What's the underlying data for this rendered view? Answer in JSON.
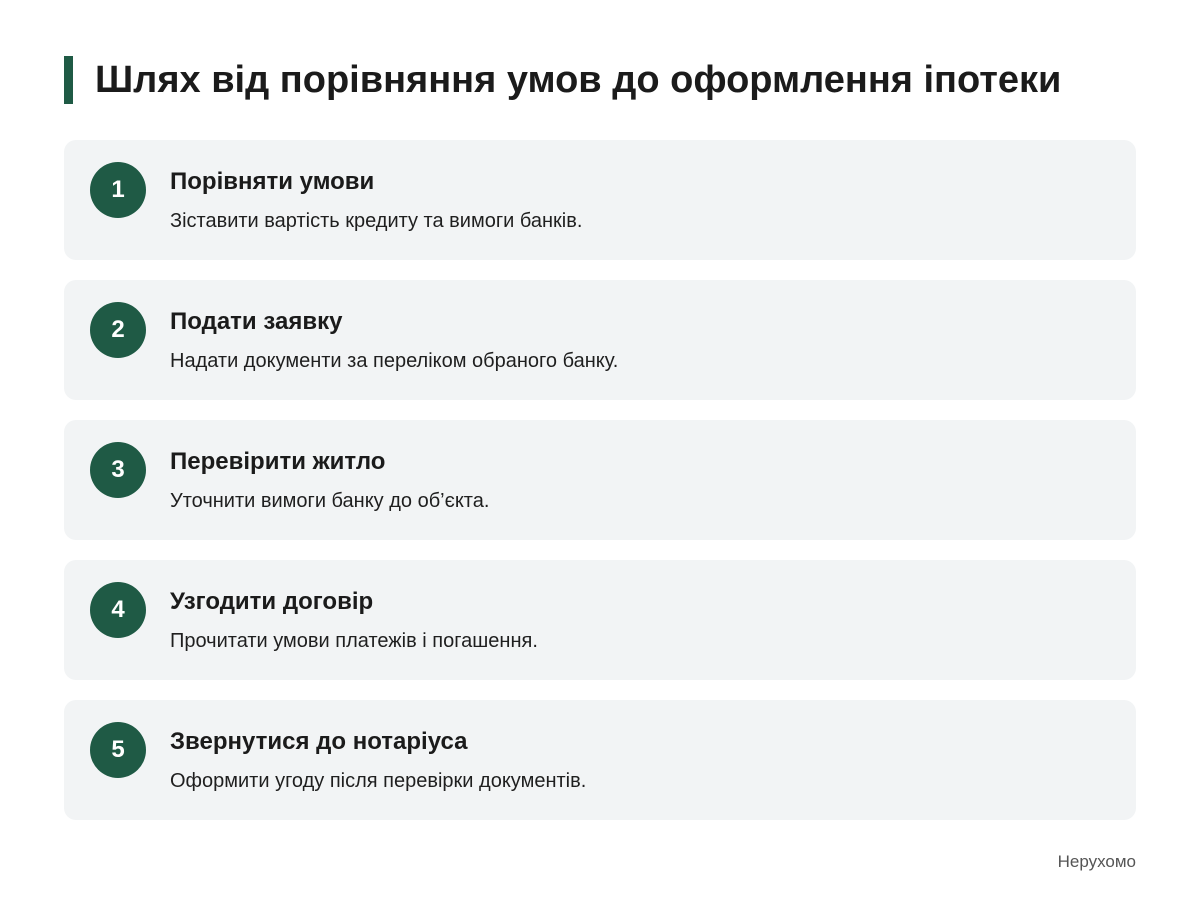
{
  "header": {
    "title": "Шлях від порівняння умов до оформлення іпотеки",
    "accent_color": "#1f5a45"
  },
  "steps": [
    {
      "number": "1",
      "title": "Порівняти умови",
      "description": "Зіставити вартість кредиту та вимоги банків."
    },
    {
      "number": "2",
      "title": "Подати заявку",
      "description": "Надати документи за переліком обраного банку."
    },
    {
      "number": "3",
      "title": "Перевірити житло",
      "description": "Уточнити вимоги банку до об’єкта."
    },
    {
      "number": "4",
      "title": "Узгодити договір",
      "description": "Прочитати умови платежів і погашення."
    },
    {
      "number": "5",
      "title": "Звернутися до нотаріуса",
      "description": "Оформити угоду після перевірки документів."
    }
  ],
  "footer": {
    "source": "Нерухомо"
  }
}
